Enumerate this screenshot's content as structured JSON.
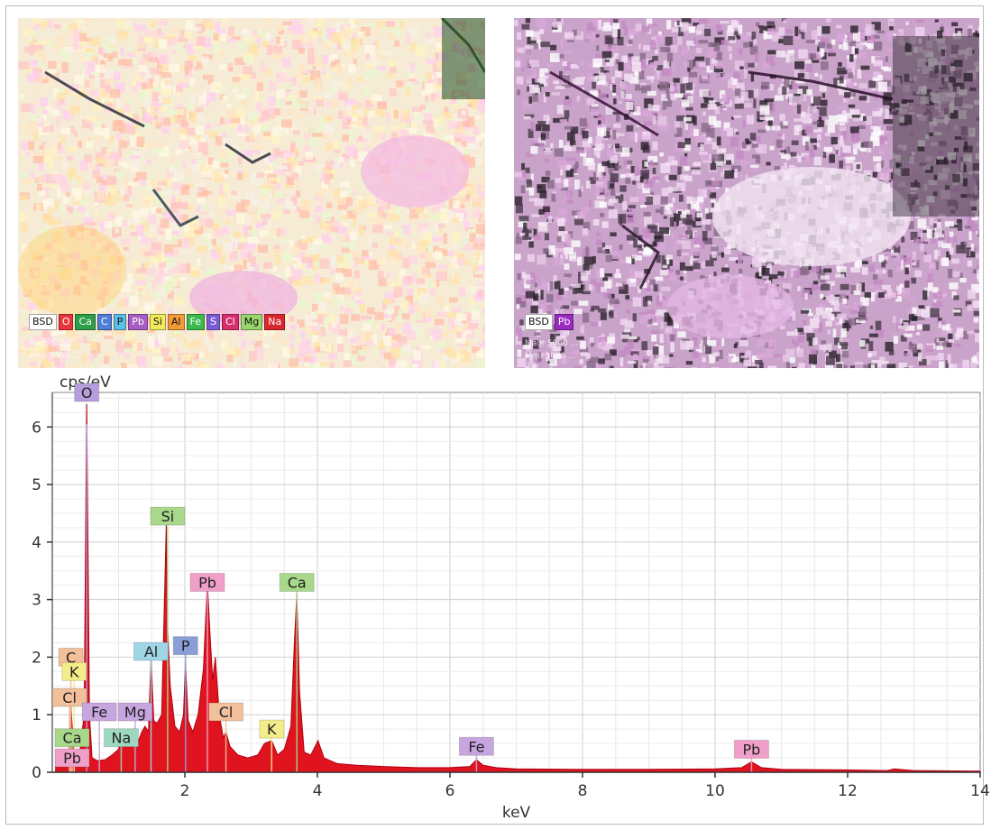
{
  "maps": {
    "left": {
      "legend": [
        {
          "label": "BSD",
          "color": "#ffffff"
        },
        {
          "label": "O",
          "color": "#e8343a"
        },
        {
          "label": "Ca",
          "color": "#2e9e4a"
        },
        {
          "label": "C",
          "color": "#4d7fd6"
        },
        {
          "label": "P",
          "color": "#5bc0e8"
        },
        {
          "label": "Pb",
          "color": "#a65cc2"
        },
        {
          "label": "Si",
          "color": "#f2ec5c"
        },
        {
          "label": "Al",
          "color": "#f29a3a"
        },
        {
          "label": "Fe",
          "color": "#3cb84c"
        },
        {
          "label": "S",
          "color": "#7b5cd6"
        },
        {
          "label": "Cl",
          "color": "#d8306e"
        },
        {
          "label": "Mg",
          "color": "#9ad66b"
        },
        {
          "label": "Na",
          "color": "#d8282e"
        }
      ],
      "scale_line1": "Mag: 5000 ...",
      "scale_line2": "Mm: 5000 ..."
    },
    "right": {
      "legend": [
        {
          "label": "BSD",
          "color": "#ffffff"
        },
        {
          "label": "Pb",
          "color": "#9b2ac0"
        }
      ],
      "scale_line1": "Mag: 5000 ...",
      "scale_line2": "Mm: 5000 ..."
    }
  },
  "chart_data": {
    "type": "line",
    "ylabel": "cps/eV",
    "xlabel": "keV",
    "xlim": [
      0,
      14
    ],
    "ylim": [
      0,
      6.6
    ],
    "xticks": [
      2,
      4,
      6,
      8,
      10,
      12,
      14
    ],
    "yticks": [
      0,
      1,
      2,
      3,
      4,
      5,
      6
    ],
    "grid": true,
    "fill_color": "#e0141e",
    "background_color": "#ffffff",
    "series": [
      {
        "x": [
          0.05,
          0.15,
          0.25,
          0.28,
          0.32,
          0.4,
          0.48,
          0.52,
          0.56,
          0.6,
          0.68,
          0.8,
          0.9,
          1.0,
          1.04,
          1.1,
          1.18,
          1.25,
          1.3,
          1.35,
          1.4,
          1.45,
          1.49,
          1.53,
          1.58,
          1.65,
          1.72,
          1.74,
          1.78,
          1.85,
          1.92,
          1.98,
          2.01,
          2.05,
          2.12,
          2.2,
          2.28,
          2.34,
          2.38,
          2.42,
          2.46,
          2.52,
          2.58,
          2.62,
          2.68,
          2.8,
          2.95,
          3.1,
          3.2,
          3.31,
          3.4,
          3.5,
          3.6,
          3.65,
          3.69,
          3.73,
          3.8,
          3.9,
          4.01,
          4.1,
          4.3,
          4.6,
          5.0,
          5.5,
          6.0,
          6.3,
          6.4,
          6.5,
          6.7,
          7.0,
          8.0,
          9.0,
          10.0,
          10.4,
          10.55,
          10.7,
          11.0,
          12.0,
          12.6,
          12.7,
          13.0,
          14.0
        ],
        "y": [
          0.2,
          0.18,
          0.3,
          1.2,
          0.4,
          0.2,
          1.0,
          6.4,
          1.0,
          0.25,
          0.2,
          0.22,
          0.3,
          0.4,
          0.6,
          0.45,
          0.5,
          0.65,
          0.55,
          0.7,
          0.8,
          0.7,
          2.0,
          0.9,
          0.85,
          1.0,
          4.3,
          2.5,
          1.5,
          0.8,
          0.7,
          1.0,
          1.9,
          0.9,
          0.7,
          1.0,
          1.8,
          3.3,
          2.4,
          1.6,
          2.0,
          1.0,
          0.6,
          0.7,
          0.45,
          0.3,
          0.25,
          0.3,
          0.5,
          0.55,
          0.3,
          0.4,
          0.8,
          2.2,
          3.1,
          1.4,
          0.35,
          0.3,
          0.55,
          0.25,
          0.15,
          0.12,
          0.1,
          0.08,
          0.08,
          0.1,
          0.22,
          0.12,
          0.08,
          0.06,
          0.05,
          0.05,
          0.06,
          0.08,
          0.18,
          0.08,
          0.05,
          0.04,
          0.03,
          0.06,
          0.03,
          0.02
        ]
      }
    ],
    "annotations": [
      {
        "text": "O",
        "x": 0.52,
        "y": 6.6,
        "color": "#b79ddb"
      },
      {
        "text": "Si",
        "x": 1.74,
        "y": 4.45,
        "color": "#a8d88a"
      },
      {
        "text": "Pb",
        "x": 2.34,
        "y": 3.3,
        "color": "#f0a0c8"
      },
      {
        "text": "Ca",
        "x": 3.69,
        "y": 3.3,
        "color": "#a8d88a"
      },
      {
        "text": "Al",
        "x": 1.49,
        "y": 2.1,
        "color": "#9fd6e6"
      },
      {
        "text": "P",
        "x": 2.01,
        "y": 2.2,
        "color": "#8a9ed8"
      },
      {
        "text": "C",
        "x": 0.28,
        "y": 2.0,
        "color": "#f2c09a"
      },
      {
        "text": "K",
        "x": 0.33,
        "y": 1.75,
        "color": "#f2ec8a"
      },
      {
        "text": "Cl",
        "x": 0.26,
        "y": 1.3,
        "color": "#f2c09a"
      },
      {
        "text": "Fe",
        "x": 0.71,
        "y": 1.05,
        "color": "#c7a6e0"
      },
      {
        "text": "Mg",
        "x": 1.25,
        "y": 1.05,
        "color": "#c7a6e0"
      },
      {
        "text": "Na",
        "x": 1.04,
        "y": 0.6,
        "color": "#9ed8c0"
      },
      {
        "text": "Ca",
        "x": 0.3,
        "y": 0.6,
        "color": "#a8d88a"
      },
      {
        "text": "Pb",
        "x": 0.3,
        "y": 0.25,
        "color": "#f0a0c8"
      },
      {
        "text": "Cl",
        "x": 2.62,
        "y": 1.05,
        "color": "#f2c09a"
      },
      {
        "text": "K",
        "x": 3.31,
        "y": 0.75,
        "color": "#f2ec8a"
      },
      {
        "text": "Fe",
        "x": 6.4,
        "y": 0.45,
        "color": "#c7a6e0"
      },
      {
        "text": "Pb",
        "x": 10.55,
        "y": 0.4,
        "color": "#f0a0c8"
      }
    ]
  }
}
